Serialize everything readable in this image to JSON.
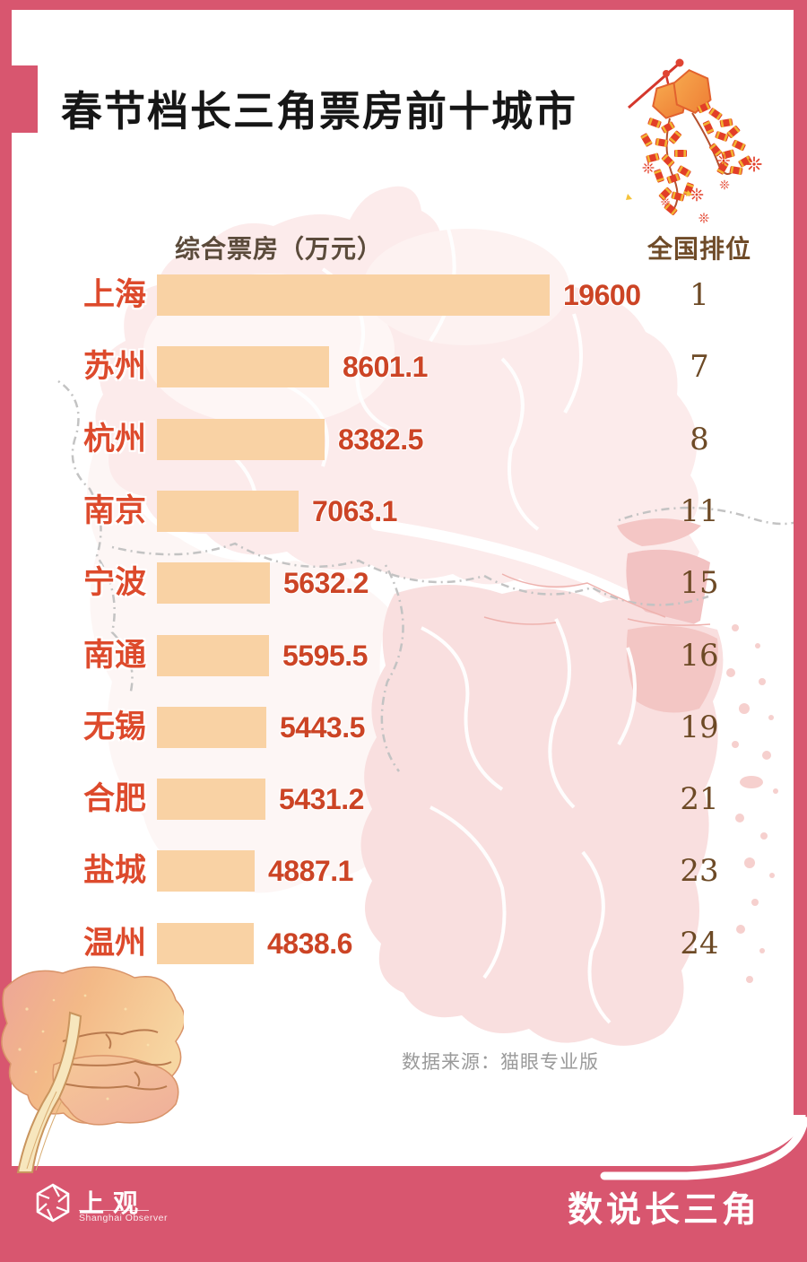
{
  "title": "春节档长三角票房前十城市",
  "table": {
    "value_header": "综合票房（万元）",
    "rank_header": "全国排位"
  },
  "source": "数据来源：猫眼专业版",
  "footer": {
    "logo_cn": "上观",
    "logo_en": "Shanghai Observer",
    "series_title": "数说长三角"
  },
  "colors": {
    "frame": "#d8566f",
    "bar_fill": "#f9d2a4",
    "city_label": "#dd4a2c",
    "value_label": "#cc4425",
    "rank_label": "#6d4a26",
    "value_header": "#5b4b3b",
    "rank_header": "#6f4b28",
    "source_text": "#9a9a9a",
    "map_pink_light": "#fcebeb",
    "map_pink": "#f9dede",
    "map_pink_dark": "#f2c2c2",
    "title_color": "#161616"
  },
  "chart_data": {
    "type": "bar",
    "orientation": "horizontal",
    "title": "春节档长三角票房前十城市",
    "xlabel": "综合票房（万元）",
    "ylabel": "",
    "rank_column_label": "全国排位",
    "xlim": [
      0,
      19600
    ],
    "grid": false,
    "categories": [
      "上海",
      "苏州",
      "杭州",
      "南京",
      "宁波",
      "南通",
      "无锡",
      "合肥",
      "盐城",
      "温州"
    ],
    "series": [
      {
        "name": "综合票房（万元）",
        "values": [
          19600,
          8601.1,
          8382.5,
          7063.1,
          5632.2,
          5595.5,
          5443.5,
          5431.2,
          4887.1,
          4838.6
        ]
      },
      {
        "name": "全国排位",
        "values": [
          1,
          7,
          8,
          11,
          15,
          16,
          19,
          21,
          23,
          24
        ]
      }
    ],
    "value_labels": [
      "19600",
      "8601.1",
      "8382.5",
      "7063.1",
      "5632.2",
      "5595.5",
      "5443.5",
      "5431.2",
      "4887.1",
      "4838.6"
    ],
    "source": "数据来源：猫眼专业版"
  }
}
